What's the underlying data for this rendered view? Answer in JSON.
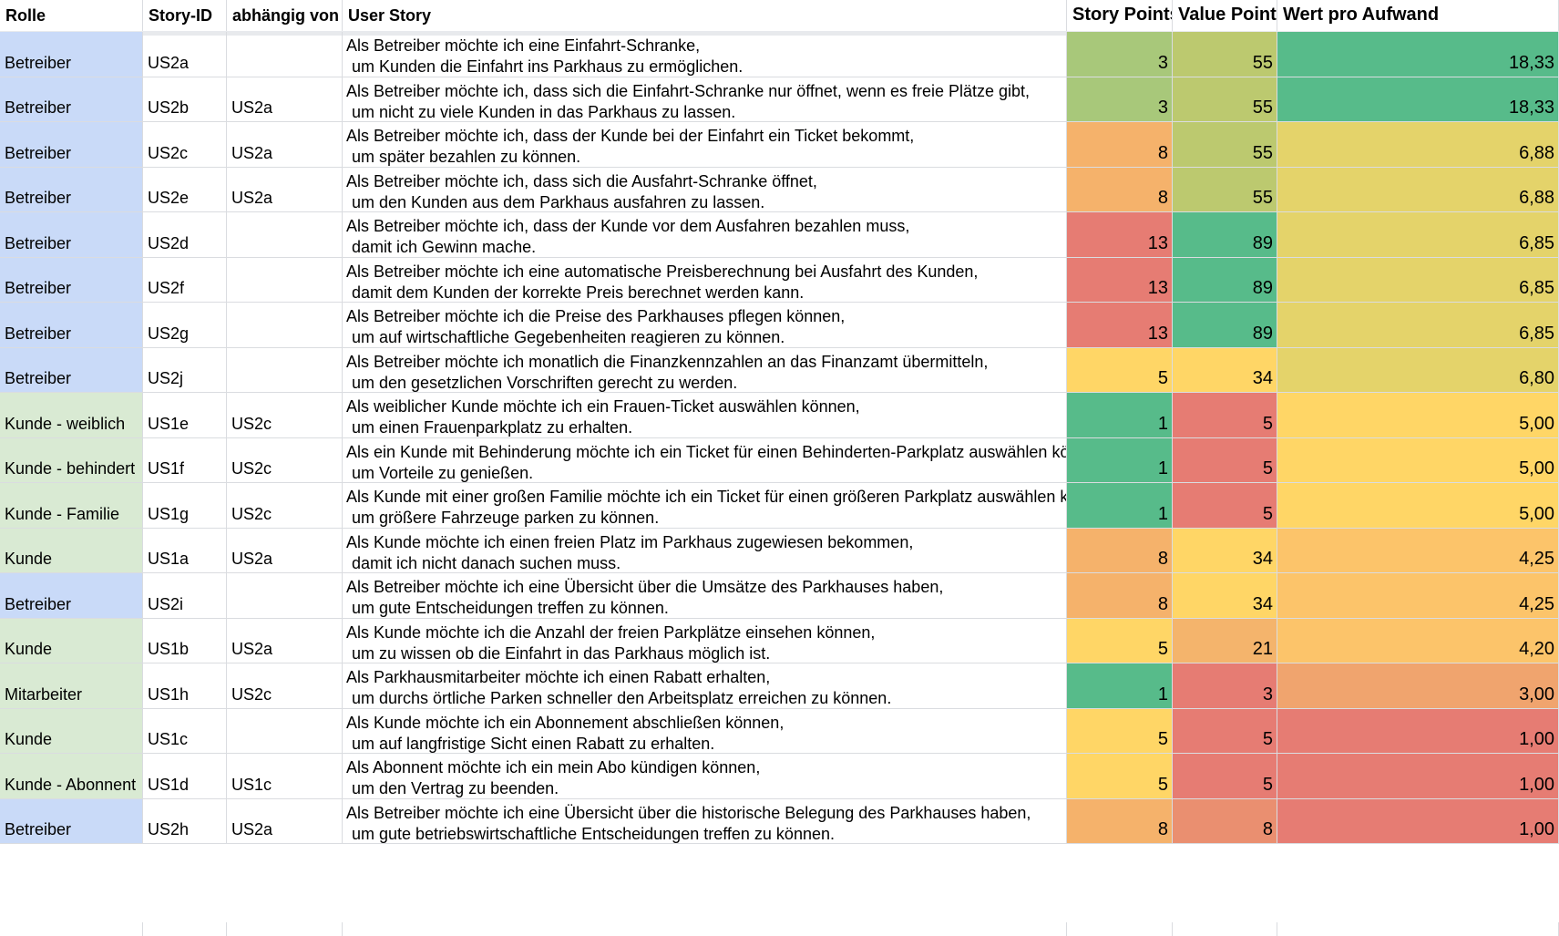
{
  "headers": {
    "rolle": "Rolle",
    "story_id": "Story-ID",
    "abhaengig": "abhängig von",
    "user_story": "User Story",
    "story_points": "Story Points",
    "value_points": "Value Points",
    "wert": "Wert pro Aufwand"
  },
  "colors": {
    "role_betreiber": "#c9daf8",
    "role_kunde": "#d9ead3",
    "scale_green": "#57bb8a",
    "scale_yellow": "#ffd666",
    "scale_red": "#e67c73"
  },
  "rows": [
    {
      "rolle": "Betreiber",
      "role_type": "betreiber",
      "id": "US2a",
      "dep": "",
      "line1": "Als Betreiber möchte ich eine Einfahrt-Schranke,",
      "line2": "um Kunden die Einfahrt ins Parkhaus zu ermöglichen.",
      "sp": "3",
      "vp": "55",
      "wert": "18,33",
      "sp_color": "#a8c87a",
      "vp_color": "#bcc96f",
      "wert_color": "#57bb8a"
    },
    {
      "rolle": "Betreiber",
      "role_type": "betreiber",
      "id": "US2b",
      "dep": "US2a",
      "line1": "Als Betreiber möchte ich, dass sich die Einfahrt-Schranke nur öffnet, wenn es freie Plätze gibt,",
      "line2": "um nicht zu viele Kunden in das Parkhaus zu lassen.",
      "sp": "3",
      "vp": "55",
      "wert": "18,33",
      "sp_color": "#a8c87a",
      "vp_color": "#bcc96f",
      "wert_color": "#57bb8a"
    },
    {
      "rolle": "Betreiber",
      "role_type": "betreiber",
      "id": "US2c",
      "dep": "US2a",
      "line1": "Als Betreiber möchte ich, dass der Kunde bei der Einfahrt ein Ticket bekommt,",
      "line2": "um später bezahlen zu können.",
      "sp": "8",
      "vp": "55",
      "wert": "6,88",
      "sp_color": "#f5b26b",
      "vp_color": "#bcc96f",
      "wert_color": "#e4d36a"
    },
    {
      "rolle": "Betreiber",
      "role_type": "betreiber",
      "id": "US2e",
      "dep": "US2a",
      "line1": "Als Betreiber möchte ich, dass sich die Ausfahrt-Schranke öffnet,",
      "line2": "um den Kunden aus dem Parkhaus ausfahren zu lassen.",
      "sp": "8",
      "vp": "55",
      "wert": "6,88",
      "sp_color": "#f5b26b",
      "vp_color": "#bcc96f",
      "wert_color": "#e4d36a"
    },
    {
      "rolle": "Betreiber",
      "role_type": "betreiber",
      "id": "US2d",
      "dep": "",
      "line1": "Als Betreiber möchte ich, dass der Kunde vor dem Ausfahren bezahlen muss,",
      "line2": "damit ich Gewinn mache.",
      "sp": "13",
      "vp": "89",
      "wert": "6,85",
      "sp_color": "#e67c73",
      "vp_color": "#57bb8a",
      "wert_color": "#e4d36a"
    },
    {
      "rolle": "Betreiber",
      "role_type": "betreiber",
      "id": "US2f",
      "dep": "",
      "line1": "Als Betreiber möchte ich eine automatische Preisberechnung bei Ausfahrt des Kunden,",
      "line2": "damit dem Kunden der korrekte Preis berechnet werden kann.",
      "sp": "13",
      "vp": "89",
      "wert": "6,85",
      "sp_color": "#e67c73",
      "vp_color": "#57bb8a",
      "wert_color": "#e4d36a"
    },
    {
      "rolle": "Betreiber",
      "role_type": "betreiber",
      "id": "US2g",
      "dep": "",
      "line1": "Als Betreiber möchte ich die Preise des Parkhauses pflegen können,",
      "line2": "um auf wirtschaftliche Gegebenheiten reagieren zu können.",
      "sp": "13",
      "vp": "89",
      "wert": "6,85",
      "sp_color": "#e67c73",
      "vp_color": "#57bb8a",
      "wert_color": "#e4d36a"
    },
    {
      "rolle": "Betreiber",
      "role_type": "betreiber",
      "id": "US2j",
      "dep": "",
      "line1": "Als Betreiber möchte ich monatlich die Finanzkennzahlen an das Finanzamt übermitteln,",
      "line2": "um den gesetzlichen Vorschriften gerecht zu werden.",
      "sp": "5",
      "vp": "34",
      "wert": "6,80",
      "sp_color": "#ffd666",
      "vp_color": "#ffd666",
      "wert_color": "#e4d36a"
    },
    {
      "rolle": "Kunde - weiblich",
      "role_type": "kunde",
      "id": "US1e",
      "dep": "US2c",
      "line1": "Als weiblicher Kunde möchte ich ein Frauen-Ticket auswählen können,",
      "line2": "um einen Frauenparkplatz zu erhalten.",
      "sp": "1",
      "vp": "5",
      "wert": "5,00",
      "sp_color": "#57bb8a",
      "vp_color": "#e67c73",
      "wert_color": "#ffd666"
    },
    {
      "rolle": "Kunde - behindert",
      "role_type": "kunde",
      "id": "US1f",
      "dep": "US2c",
      "line1": "Als ein Kunde mit Behinderung möchte ich ein Ticket für einen Behinderten-Parkplatz auswählen können,",
      "line2": "um Vorteile zu genießen.",
      "sp": "1",
      "vp": "5",
      "wert": "5,00",
      "sp_color": "#57bb8a",
      "vp_color": "#e67c73",
      "wert_color": "#ffd666"
    },
    {
      "rolle": "Kunde - Familie",
      "role_type": "kunde",
      "id": "US1g",
      "dep": "US2c",
      "line1": "Als Kunde mit einer großen Familie möchte ich ein Ticket für einen größeren Parkplatz auswählen können,",
      "line2": "um größere Fahrzeuge parken zu können.",
      "sp": "1",
      "vp": "5",
      "wert": "5,00",
      "sp_color": "#57bb8a",
      "vp_color": "#e67c73",
      "wert_color": "#ffd666"
    },
    {
      "rolle": "Kunde",
      "role_type": "kunde",
      "id": "US1a",
      "dep": "US2a",
      "line1": "Als Kunde möchte ich einen freien Platz im Parkhaus zugewiesen bekommen,",
      "line2": "damit ich nicht danach suchen muss.",
      "sp": "8",
      "vp": "34",
      "wert": "4,25",
      "sp_color": "#f5b26b",
      "vp_color": "#ffd666",
      "wert_color": "#fcc46a"
    },
    {
      "rolle": "Betreiber",
      "role_type": "betreiber",
      "id": "US2i",
      "dep": "",
      "line1": "Als Betreiber möchte ich eine Übersicht über die Umsätze des Parkhauses haben,",
      "line2": "um gute Entscheidungen treffen zu können.",
      "sp": "8",
      "vp": "34",
      "wert": "4,25",
      "sp_color": "#f5b26b",
      "vp_color": "#ffd666",
      "wert_color": "#fcc46a"
    },
    {
      "rolle": "Kunde",
      "role_type": "kunde",
      "id": "US1b",
      "dep": "US2a",
      "line1": "Als Kunde möchte ich die Anzahl der freien Parkplätze einsehen können,",
      "line2": "um zu wissen ob die Einfahrt in das Parkhaus möglich ist.",
      "sp": "5",
      "vp": "21",
      "wert": "4,20",
      "sp_color": "#ffd666",
      "vp_color": "#f4b46c",
      "wert_color": "#fcc46a"
    },
    {
      "rolle": "Mitarbeiter",
      "role_type": "kunde",
      "id": "US1h",
      "dep": "US2c",
      "line1": "Als Parkhausmitarbeiter möchte ich einen Rabatt erhalten,",
      "line2": "um durchs örtliche Parken schneller den Arbeitsplatz erreichen zu können.",
      "sp": "1",
      "vp": "3",
      "wert": "3,00",
      "sp_color": "#57bb8a",
      "vp_color": "#e67c73",
      "wert_color": "#f0a46e"
    },
    {
      "rolle": "Kunde",
      "role_type": "kunde",
      "id": "US1c",
      "dep": "",
      "line1": "Als Kunde möchte ich ein Abonnement abschließen können,",
      "line2": "um auf langfristige Sicht einen Rabatt zu erhalten.",
      "sp": "5",
      "vp": "5",
      "wert": "1,00",
      "sp_color": "#ffd666",
      "vp_color": "#e67c73",
      "wert_color": "#e67c73"
    },
    {
      "rolle": "Kunde - Abonnent",
      "role_type": "kunde",
      "id": "US1d",
      "dep": "US1c",
      "line1": "Als Abonnent möchte ich ein mein Abo kündigen können,",
      "line2": "um den Vertrag zu beenden.",
      "sp": "5",
      "vp": "5",
      "wert": "1,00",
      "sp_color": "#ffd666",
      "vp_color": "#e67c73",
      "wert_color": "#e67c73"
    },
    {
      "rolle": "Betreiber",
      "role_type": "betreiber",
      "id": "US2h",
      "dep": "US2a",
      "line1": "Als Betreiber möchte ich eine Übersicht über die historische Belegung des Parkhauses haben,",
      "line2": "um gute betriebswirtschaftliche Entscheidungen treffen zu können.",
      "sp": "8",
      "vp": "8",
      "wert": "1,00",
      "sp_color": "#f5b26b",
      "vp_color": "#ea8f70",
      "wert_color": "#e67c73"
    }
  ]
}
